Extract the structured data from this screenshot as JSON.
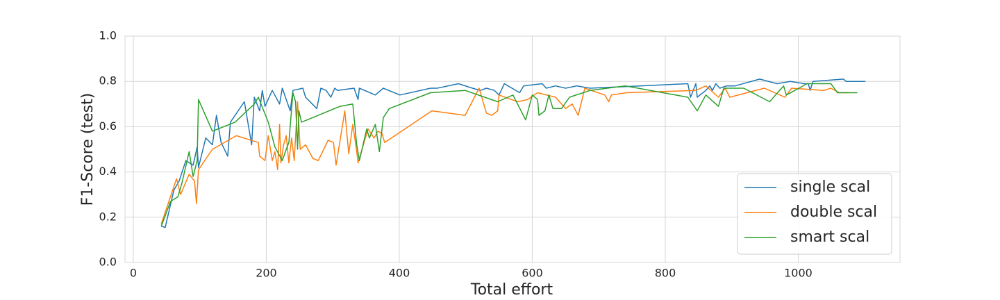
{
  "chart_data": {
    "type": "line",
    "xlabel": "Total effort",
    "ylabel": "F1-Score (test)",
    "xlim": [
      -12.5,
      1153
    ],
    "ylim": [
      0,
      1
    ],
    "xticks": [
      0,
      200,
      400,
      600,
      800,
      1000
    ],
    "yticks": [
      {
        "value": 0,
        "label": "0.0"
      },
      0.2,
      0.4,
      0.6,
      0.8,
      {
        "value": 1,
        "label": "1.0"
      }
    ],
    "grid": true,
    "legend_loc": "lower right",
    "series": [
      {
        "name": "single scal",
        "color": "#1f77b4",
        "x": [
          42,
          48,
          61,
          69,
          79,
          90,
          96,
          98,
          109,
          119,
          125,
          132,
          142,
          146,
          167,
          178,
          182,
          190,
          194,
          198,
          209,
          220,
          224,
          236,
          240,
          255,
          259,
          276,
          282,
          290,
          297,
          303,
          307,
          332,
          338,
          340,
          364,
          376,
          401,
          447,
          457,
          489,
          510,
          522,
          531,
          543,
          550,
          558,
          581,
          587,
          615,
          621,
          635,
          650,
          667,
          687,
          834,
          838,
          846,
          848,
          861,
          867,
          871,
          876,
          882,
          892,
          905,
          942,
          968,
          988,
          1009,
          1015,
          1018,
          1022,
          1068,
          1072,
          1101
        ],
        "values": [
          0.16,
          0.155,
          0.32,
          0.36,
          0.45,
          0.43,
          0.51,
          0.42,
          0.55,
          0.52,
          0.65,
          0.53,
          0.47,
          0.62,
          0.71,
          0.52,
          0.73,
          0.67,
          0.76,
          0.69,
          0.76,
          0.7,
          0.77,
          0.67,
          0.76,
          0.77,
          0.73,
          0.68,
          0.77,
          0.76,
          0.73,
          0.77,
          0.76,
          0.77,
          0.72,
          0.77,
          0.74,
          0.77,
          0.74,
          0.77,
          0.77,
          0.79,
          0.77,
          0.76,
          0.77,
          0.76,
          0.74,
          0.79,
          0.75,
          0.78,
          0.79,
          0.77,
          0.78,
          0.77,
          0.78,
          0.77,
          0.79,
          0.73,
          0.79,
          0.73,
          0.76,
          0.78,
          0.76,
          0.79,
          0.77,
          0.78,
          0.78,
          0.81,
          0.79,
          0.8,
          0.79,
          0.79,
          0.76,
          0.8,
          0.81,
          0.8,
          0.8
        ]
      },
      {
        "name": "double scal",
        "color": "#ff7f0e",
        "x": [
          42,
          65,
          71,
          84,
          92,
          95,
          98,
          119,
          155,
          188,
          190,
          198,
          203,
          209,
          213,
          217,
          220,
          222,
          226,
          230,
          234,
          238,
          242,
          247,
          251,
          259,
          270,
          278,
          293,
          301,
          305,
          318,
          324,
          330,
          336,
          338,
          353,
          362,
          368,
          374,
          378,
          449,
          499,
          520,
          531,
          539,
          548,
          550,
          578,
          593,
          608,
          635,
          644,
          650,
          660,
          669,
          679,
          709,
          715,
          719,
          742,
          846,
          861,
          880,
          890,
          897,
          949,
          980,
          990,
          1039,
          1049,
          1062,
          1076
        ],
        "values": [
          0.17,
          0.37,
          0.3,
          0.39,
          0.36,
          0.26,
          0.41,
          0.5,
          0.56,
          0.53,
          0.47,
          0.45,
          0.56,
          0.45,
          0.49,
          0.41,
          0.61,
          0.44,
          0.52,
          0.56,
          0.44,
          0.55,
          0.45,
          0.71,
          0.5,
          0.52,
          0.46,
          0.45,
          0.54,
          0.53,
          0.43,
          0.67,
          0.48,
          0.61,
          0.49,
          0.44,
          0.59,
          0.55,
          0.58,
          0.57,
          0.53,
          0.67,
          0.65,
          0.77,
          0.66,
          0.65,
          0.67,
          0.74,
          0.71,
          0.72,
          0.75,
          0.73,
          0.7,
          0.68,
          0.7,
          0.65,
          0.77,
          0.74,
          0.71,
          0.74,
          0.75,
          0.76,
          0.78,
          0.73,
          0.77,
          0.73,
          0.77,
          0.73,
          0.77,
          0.76,
          0.77,
          0.75,
          0.75
        ]
      },
      {
        "name": "smart scal",
        "color": "#2ca02c",
        "x": [
          42,
          56,
          67,
          73,
          84,
          90,
          96,
          98,
          119,
          153,
          182,
          188,
          203,
          213,
          224,
          230,
          234,
          240,
          244,
          247,
          249,
          253,
          311,
          330,
          336,
          340,
          351,
          355,
          364,
          370,
          376,
          385,
          447,
          499,
          548,
          571,
          590,
          600,
          608,
          610,
          619,
          625,
          631,
          644,
          656,
          687,
          740,
          834,
          848,
          861,
          880,
          888,
          918,
          957,
          978,
          982,
          1001,
          1013,
          1049,
          1059,
          1089
        ],
        "values": [
          0.16,
          0.27,
          0.29,
          0.35,
          0.49,
          0.38,
          0.45,
          0.72,
          0.58,
          0.62,
          0.7,
          0.73,
          0.62,
          0.51,
          0.45,
          0.5,
          0.53,
          0.75,
          0.71,
          0.5,
          0.67,
          0.62,
          0.69,
          0.7,
          0.52,
          0.45,
          0.59,
          0.55,
          0.61,
          0.49,
          0.64,
          0.68,
          0.75,
          0.76,
          0.71,
          0.74,
          0.63,
          0.74,
          0.72,
          0.65,
          0.67,
          0.74,
          0.68,
          0.68,
          0.73,
          0.76,
          0.78,
          0.73,
          0.67,
          0.74,
          0.69,
          0.77,
          0.77,
          0.71,
          0.78,
          0.74,
          0.77,
          0.79,
          0.79,
          0.75,
          0.75
        ]
      }
    ]
  }
}
